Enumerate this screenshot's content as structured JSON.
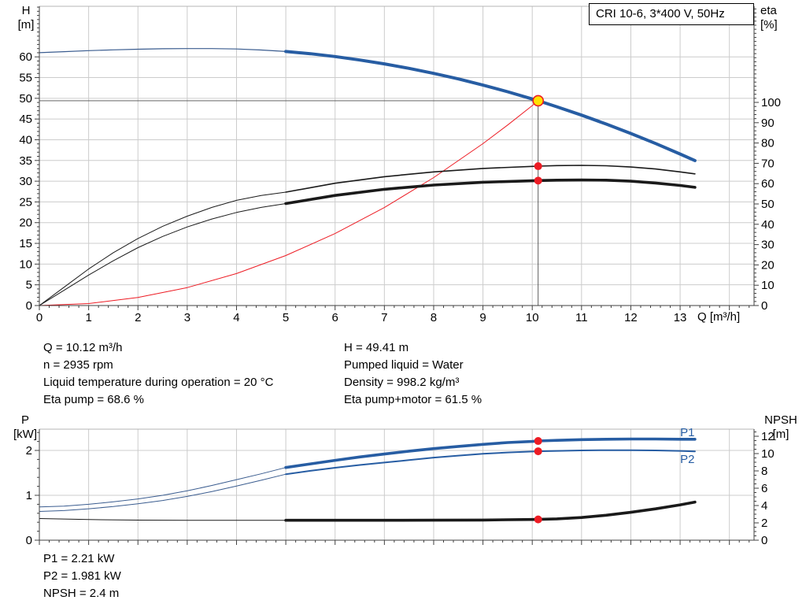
{
  "info_left": [
    "Q = 10.12 m³/h",
    "n = 2935 rpm",
    "Liquid temperature during operation = 20 °C",
    "Eta pump = 68.6 %"
  ],
  "info_right": [
    "H = 49.41 m",
    "Pumped liquid = Water",
    "Density = 998.2 kg/m³",
    "Eta pump+motor = 61.5 %"
  ],
  "results": [
    "P1 = 2.21 kW",
    "P2 = 1.981 kW",
    "NPSH = 2.4 m"
  ],
  "colors": {
    "grid": "#cccccc",
    "frame_top": "#b4b4b4",
    "axis": "#404040",
    "red": "#ed1c24",
    "duty_fill": "#ffe100",
    "blue": "#275da3",
    "thin_blue": "#3a5c8f",
    "black": "#1a1a1a"
  },
  "chart_data": [
    {
      "type": "line",
      "title": "CRI 10-6, 3*400 V, 50Hz",
      "x_axis": {
        "label": "Q [m³/h]",
        "min": 0,
        "max": 14.5,
        "major_ticks": [
          0,
          1,
          2,
          3,
          4,
          5,
          6,
          7,
          8,
          9,
          10,
          11,
          12,
          13,
          14
        ],
        "tick_labels": [
          "0",
          "1",
          "2",
          "3",
          "4",
          "5",
          "6",
          "7",
          "8",
          "9",
          "10",
          "11",
          "12",
          "13"
        ],
        "minor_step": 0.2
      },
      "y_left": {
        "name": "H",
        "unit": "[m]",
        "min": 0,
        "max": 72.2,
        "major_ticks": [
          0,
          5,
          10,
          15,
          20,
          25,
          30,
          35,
          40,
          45,
          50,
          55,
          60
        ],
        "minor_step": 1
      },
      "y_right": {
        "name": "eta",
        "unit": "[%]",
        "min": 0,
        "max": 147.3,
        "major_ticks": [
          0,
          10,
          20,
          30,
          40,
          50,
          60,
          70,
          80,
          90,
          100
        ],
        "minor_step": 2
      },
      "duty_point": {
        "Q": 10.12,
        "H": 49.41,
        "eta_pump": 68.6,
        "eta_pump_motor": 61.5
      },
      "series": [
        {
          "name": "pump-curve-extension",
          "axis": "left",
          "color": "#3a5c8f",
          "width": 1.2,
          "points": [
            [
              0,
              61.0
            ],
            [
              0.5,
              61.25
            ],
            [
              1,
              61.5
            ],
            [
              1.5,
              61.7
            ],
            [
              2,
              61.85
            ],
            [
              2.5,
              61.95
            ],
            [
              3,
              62.0
            ],
            [
              3.5,
              62.0
            ],
            [
              4,
              61.9
            ],
            [
              4.5,
              61.65
            ],
            [
              5,
              61.3
            ]
          ]
        },
        {
          "name": "system-curve",
          "axis": "left",
          "color": "#ed1c24",
          "width": 1,
          "points": [
            [
              0,
              0
            ],
            [
              1,
              0.48
            ],
            [
              2,
              1.93
            ],
            [
              3,
              4.34
            ],
            [
              4,
              7.72
            ],
            [
              5,
              12.06
            ],
            [
              6,
              17.37
            ],
            [
              7,
              23.64
            ],
            [
              8,
              30.87
            ],
            [
              9,
              39.07
            ],
            [
              9.5,
              43.54
            ],
            [
              10,
              48.24
            ],
            [
              10.12,
              49.41
            ]
          ]
        },
        {
          "name": "duty-vertical-line",
          "axis": "left",
          "color": "#4d4d4d",
          "width": 0.9,
          "points": [
            [
              10.12,
              0
            ],
            [
              10.12,
              49.41
            ]
          ]
        },
        {
          "name": "duty-horizontal-line",
          "axis": "left",
          "color": "#4d4d4d",
          "width": 0.9,
          "points": [
            [
              0,
              49.41
            ],
            [
              10.12,
              49.41
            ]
          ]
        },
        {
          "name": "eta-pump-extension",
          "axis": "right",
          "color": "#1a1a1a",
          "width": 1,
          "points": [
            [
              0,
              0
            ],
            [
              0.5,
              9
            ],
            [
              1,
              18
            ],
            [
              1.5,
              26
            ],
            [
              2,
              33
            ],
            [
              2.5,
              39
            ],
            [
              3,
              44
            ],
            [
              3.5,
              48.3
            ],
            [
              4,
              51.8
            ],
            [
              4.5,
              54.2
            ],
            [
              5,
              55.8
            ]
          ]
        },
        {
          "name": "eta-pump-curve",
          "axis": "right",
          "color": "#1a1a1a",
          "width": 1.6,
          "points": [
            [
              5,
              55.8
            ],
            [
              6,
              60.2
            ],
            [
              7,
              63.4
            ],
            [
              8,
              65.8
            ],
            [
              9,
              67.5
            ],
            [
              10,
              68.5
            ],
            [
              10.12,
              68.6
            ],
            [
              10.5,
              68.9
            ],
            [
              11,
              69.0
            ],
            [
              11.5,
              68.8
            ],
            [
              12,
              68.2
            ],
            [
              12.5,
              67.2
            ],
            [
              13,
              65.8
            ],
            [
              13.3,
              64.8
            ]
          ]
        },
        {
          "name": "eta-total-extension",
          "axis": "right",
          "color": "#1a1a1a",
          "width": 1,
          "points": [
            [
              0,
              0
            ],
            [
              0.5,
              7.5
            ],
            [
              1,
              15
            ],
            [
              1.5,
              22
            ],
            [
              2,
              28.5
            ],
            [
              2.5,
              34
            ],
            [
              3,
              38.7
            ],
            [
              3.5,
              42.6
            ],
            [
              4,
              45.8
            ],
            [
              4.5,
              48.3
            ],
            [
              5,
              50.2
            ]
          ]
        },
        {
          "name": "eta-total-curve",
          "axis": "right",
          "color": "#1a1a1a",
          "width": 3.6,
          "points": [
            [
              5,
              50.2
            ],
            [
              6,
              54.2
            ],
            [
              7,
              57.2
            ],
            [
              8,
              59.3
            ],
            [
              9,
              60.7
            ],
            [
              10,
              61.4
            ],
            [
              10.12,
              61.5
            ],
            [
              10.5,
              61.7
            ],
            [
              11,
              61.8
            ],
            [
              11.5,
              61.7
            ],
            [
              12,
              61.2
            ],
            [
              12.5,
              60.3
            ],
            [
              13,
              59.1
            ],
            [
              13.3,
              58.2
            ]
          ]
        },
        {
          "name": "pump-curve",
          "axis": "left",
          "color": "#275da3",
          "width": 4,
          "points": [
            [
              5,
              61.3
            ],
            [
              5.5,
              60.77
            ],
            [
              6,
              60.07
            ],
            [
              6.5,
              59.25
            ],
            [
              7,
              58.31
            ],
            [
              7.5,
              57.23
            ],
            [
              8,
              56.02
            ],
            [
              8.5,
              54.68
            ],
            [
              9,
              53.19
            ],
            [
              9.5,
              51.58
            ],
            [
              10,
              49.84
            ],
            [
              10.12,
              49.41
            ],
            [
              10.5,
              47.96
            ],
            [
              11,
              45.95
            ],
            [
              11.5,
              43.8
            ],
            [
              12,
              41.52
            ],
            [
              12.5,
              39.11
            ],
            [
              13,
              36.56
            ],
            [
              13.3,
              34.97
            ]
          ]
        }
      ],
      "labels": [],
      "markers": [
        {
          "name": "eta-pump-dot",
          "axis": "right",
          "x": 10.12,
          "y": 68.6,
          "style": "dot"
        },
        {
          "name": "eta-total-dot",
          "axis": "right",
          "x": 10.12,
          "y": 61.5,
          "style": "dot"
        },
        {
          "name": "duty-point",
          "axis": "left",
          "x": 10.12,
          "y": 49.41,
          "style": "duty"
        }
      ]
    },
    {
      "type": "line",
      "title": "",
      "x_axis": {
        "label": "",
        "min": 0,
        "max": 14.5,
        "major_ticks": [
          0,
          1,
          2,
          3,
          4,
          5,
          6,
          7,
          8,
          9,
          10,
          11,
          12,
          13,
          14
        ],
        "tick_labels": [],
        "minor_step": 0.2
      },
      "y_left": {
        "name": "P",
        "unit": "[kW]",
        "min": 0,
        "max": 2.474,
        "major_ticks": [
          0,
          1,
          2
        ],
        "minor_step": 0.2
      },
      "y_right": {
        "name": "NPSH",
        "unit": "[m]",
        "min": 0,
        "max": 12.82,
        "major_ticks": [
          0,
          2,
          4,
          6,
          8,
          10,
          12
        ],
        "minor_step": 0.5
      },
      "duty_point": {
        "Q": 10.12,
        "P1": 2.21,
        "P2": 1.981,
        "NPSH": 2.4
      },
      "series": [
        {
          "name": "p1-extension",
          "axis": "left",
          "color": "#3a5c8f",
          "width": 1,
          "points": [
            [
              0,
              0.74
            ],
            [
              0.5,
              0.76
            ],
            [
              1,
              0.8
            ],
            [
              1.5,
              0.855
            ],
            [
              2,
              0.92
            ],
            [
              2.5,
              1.0
            ],
            [
              3,
              1.1
            ],
            [
              3.5,
              1.22
            ],
            [
              4,
              1.35
            ],
            [
              4.5,
              1.48
            ],
            [
              5,
              1.62
            ]
          ]
        },
        {
          "name": "p2-extension",
          "axis": "left",
          "color": "#3a5c8f",
          "width": 1,
          "points": [
            [
              0,
              0.64
            ],
            [
              0.5,
              0.66
            ],
            [
              1,
              0.7
            ],
            [
              1.5,
              0.75
            ],
            [
              2,
              0.81
            ],
            [
              2.5,
              0.885
            ],
            [
              3,
              0.975
            ],
            [
              3.5,
              1.085
            ],
            [
              4,
              1.205
            ],
            [
              4.5,
              1.335
            ],
            [
              5,
              1.47
            ]
          ]
        },
        {
          "name": "npsh-extension",
          "axis": "right",
          "color": "#1a1a1a",
          "width": 1,
          "points": [
            [
              0,
              2.5
            ],
            [
              1,
              2.38
            ],
            [
              2,
              2.32
            ],
            [
              3,
              2.3
            ],
            [
              4,
              2.3
            ],
            [
              5,
              2.3
            ]
          ]
        },
        {
          "name": "p2-curve",
          "axis": "left",
          "color": "#275da3",
          "width": 2,
          "points": [
            [
              5,
              1.47
            ],
            [
              5.5,
              1.545
            ],
            [
              6,
              1.615
            ],
            [
              6.5,
              1.675
            ],
            [
              7,
              1.73
            ],
            [
              7.5,
              1.785
            ],
            [
              8,
              1.84
            ],
            [
              8.5,
              1.885
            ],
            [
              9,
              1.925
            ],
            [
              9.5,
              1.955
            ],
            [
              10,
              1.975
            ],
            [
              10.12,
              1.981
            ],
            [
              10.5,
              1.99
            ],
            [
              11,
              2.0
            ],
            [
              11.5,
              2.005
            ],
            [
              12,
              2.005
            ],
            [
              12.5,
              2.0
            ],
            [
              13,
              1.99
            ],
            [
              13.3,
              1.98
            ]
          ]
        },
        {
          "name": "p1-curve",
          "axis": "left",
          "color": "#275da3",
          "width": 3.6,
          "points": [
            [
              5,
              1.62
            ],
            [
              5.5,
              1.7
            ],
            [
              6,
              1.78
            ],
            [
              6.5,
              1.855
            ],
            [
              7,
              1.92
            ],
            [
              7.5,
              1.985
            ],
            [
              8,
              2.04
            ],
            [
              8.5,
              2.09
            ],
            [
              9,
              2.135
            ],
            [
              9.5,
              2.175
            ],
            [
              10,
              2.2
            ],
            [
              10.12,
              2.21
            ],
            [
              10.5,
              2.225
            ],
            [
              11,
              2.24
            ],
            [
              11.5,
              2.25
            ],
            [
              12,
              2.255
            ],
            [
              12.5,
              2.255
            ],
            [
              13,
              2.25
            ],
            [
              13.3,
              2.25
            ]
          ]
        },
        {
          "name": "npsh-curve",
          "axis": "right",
          "color": "#1a1a1a",
          "width": 3.6,
          "points": [
            [
              5,
              2.3
            ],
            [
              6,
              2.3
            ],
            [
              7,
              2.3
            ],
            [
              8,
              2.31
            ],
            [
              9,
              2.33
            ],
            [
              9.5,
              2.36
            ],
            [
              10,
              2.39
            ],
            [
              10.12,
              2.4
            ],
            [
              10.5,
              2.46
            ],
            [
              11,
              2.62
            ],
            [
              11.5,
              2.88
            ],
            [
              12,
              3.22
            ],
            [
              12.5,
              3.62
            ],
            [
              13,
              4.08
            ],
            [
              13.3,
              4.4
            ]
          ]
        }
      ],
      "labels": [
        {
          "text": "P1",
          "axis": "left",
          "x": 13.0,
          "y": 2.32,
          "color": "#275da3"
        },
        {
          "text": "P2",
          "axis": "left",
          "x": 13.0,
          "y": 1.72,
          "color": "#275da3"
        }
      ],
      "markers": [
        {
          "name": "p1-dot",
          "axis": "left",
          "x": 10.12,
          "y": 2.21,
          "style": "dot"
        },
        {
          "name": "p2-dot",
          "axis": "left",
          "x": 10.12,
          "y": 1.981,
          "style": "dot"
        },
        {
          "name": "npsh-dot",
          "axis": "right",
          "x": 10.12,
          "y": 2.4,
          "style": "dot"
        }
      ]
    }
  ]
}
